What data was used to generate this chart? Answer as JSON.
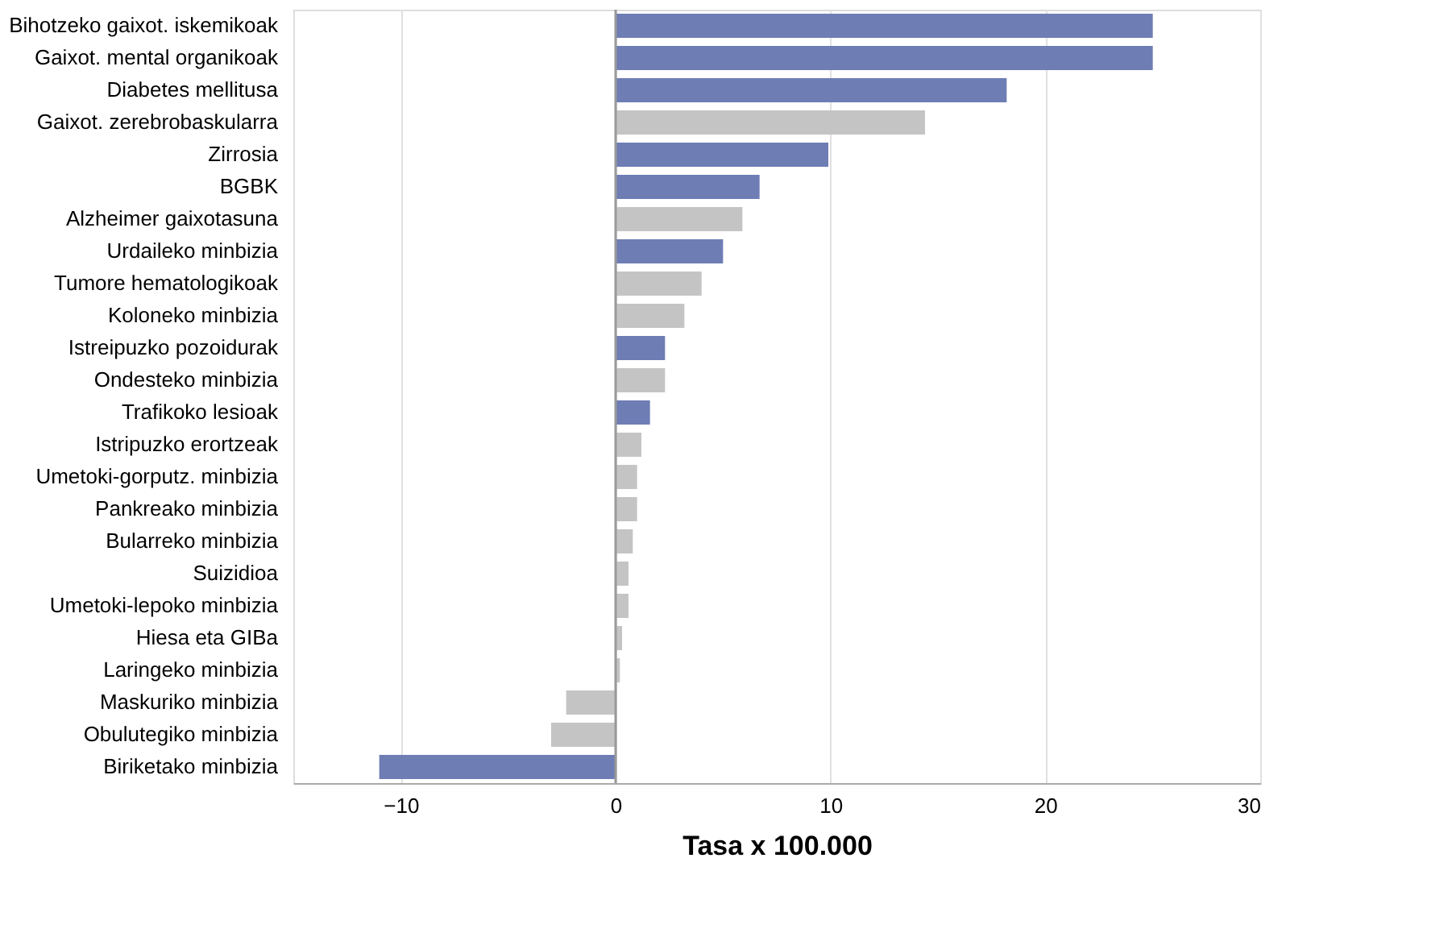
{
  "chart_data": {
    "type": "bar",
    "orientation": "horizontal",
    "xlabel": "Tasa x 100.000",
    "categories": [
      "Bihotzeko gaixot. iskemikoak",
      "Gaixot. mental organikoak",
      "Diabetes mellitusa",
      "Gaixot. zerebrobaskularra",
      "Zirrosia",
      "BGBK",
      "Alzheimer gaixotasuna",
      "Urdaileko minbizia",
      "Tumore hematologikoak",
      "Koloneko minbizia",
      "Istreipuzko pozoidurak",
      "Ondesteko minbizia",
      "Trafikoko lesioak",
      "Istripuzko erortzeak",
      "Umetoki-gorputz. minbizia",
      "Pankreako minbizia",
      "Bularreko minbizia",
      "Suizidioa",
      "Umetoki-lepoko minbizia",
      "Hiesa eta GIBa",
      "Laringeko minbizia",
      "Maskuriko minbizia",
      "Obulutegiko minbizia",
      "Biriketako minbizia"
    ],
    "values": [
      25.0,
      25.0,
      18.2,
      14.4,
      9.9,
      6.7,
      5.9,
      5.0,
      4.0,
      3.2,
      2.3,
      2.3,
      1.6,
      1.2,
      1.0,
      1.0,
      0.8,
      0.6,
      0.6,
      0.3,
      0.2,
      -2.3,
      -3.0,
      -11.0
    ],
    "colors": [
      "#6e7db4",
      "#6e7db4",
      "#6e7db4",
      "#c4c4c4",
      "#6e7db4",
      "#6e7db4",
      "#c4c4c4",
      "#6e7db4",
      "#c4c4c4",
      "#c4c4c4",
      "#6e7db4",
      "#c4c4c4",
      "#6e7db4",
      "#c4c4c4",
      "#c4c4c4",
      "#c4c4c4",
      "#c4c4c4",
      "#c4c4c4",
      "#c4c4c4",
      "#c4c4c4",
      "#c4c4c4",
      "#c4c4c4",
      "#c4c4c4",
      "#6e7db4"
    ],
    "xlim": [
      -15,
      30
    ],
    "xticks": [
      -10,
      0,
      10,
      20,
      30
    ],
    "grid": "x",
    "ref_lines": [
      {
        "axis": "x",
        "value": 0,
        "color": "#999999"
      }
    ]
  }
}
